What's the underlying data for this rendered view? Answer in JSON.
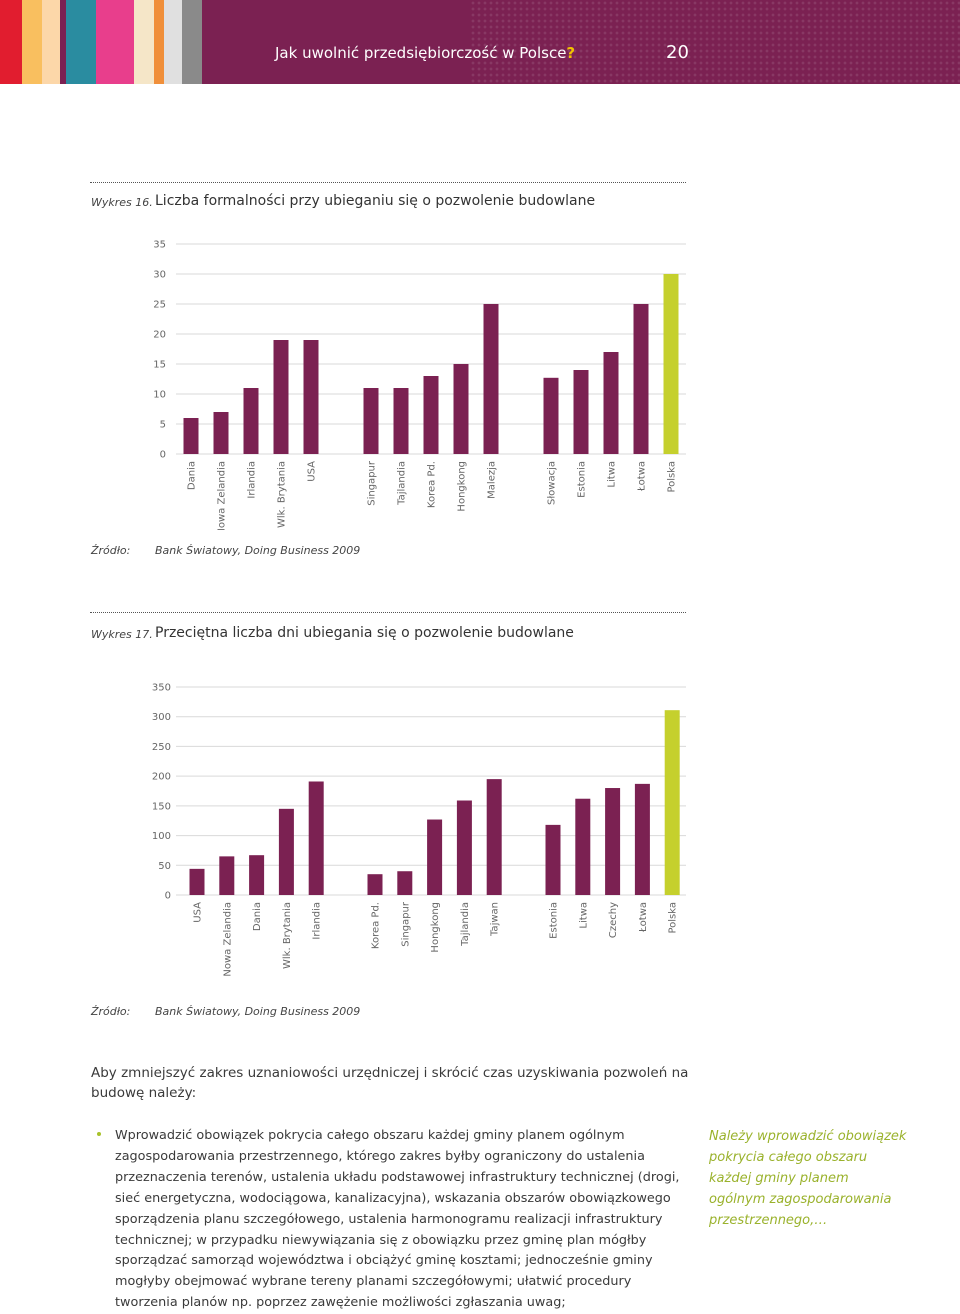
{
  "header": {
    "title": "Jak uwolnić przedsiębiorczość w Polsce",
    "title_mark": "?",
    "page_number": "20",
    "stripe_colors": [
      "#e11d2f",
      "#f9bf5f",
      "#fcd7a9",
      "#7b2152",
      "#2a8ca0",
      "#e83e8c",
      "#f5e6c8",
      "#f08f3a",
      "#e0e0e0",
      "#8a8a8a"
    ]
  },
  "figure16": {
    "label": "Wykres 16.",
    "title": "Liczba formalności przy ubieganiu się o pozwolenie budowlane",
    "source_label": "Źródło:",
    "source": "Bank Światowy, Doing Business 2009"
  },
  "figure17": {
    "label": "Wykres 17.",
    "title": "Przeciętna liczba dni ubiegania się o pozwolenie budowlane",
    "source_label": "Źródło:",
    "source": "Bank Światowy, Doing Business 2009"
  },
  "chart_data": [
    {
      "type": "bar",
      "title": "Liczba formalności przy ubieganiu się o pozwolenie budowlane",
      "categories": [
        "Dania",
        "Nowa Zelandia",
        "Irlandia",
        "Wlk. Brytania",
        "USA",
        "Singapur",
        "Tajlandia",
        "Korea Pd.",
        "Hongkong",
        "Malezja",
        "Słowacja",
        "Estonia",
        "Litwa",
        "Łotwa",
        "Polska"
      ],
      "groups": [
        5,
        5,
        5
      ],
      "values": [
        6,
        7,
        11,
        19,
        19,
        11,
        11,
        13,
        15,
        25,
        12.7,
        14,
        17,
        25,
        30
      ],
      "yticks": [
        0,
        5,
        10,
        15,
        20,
        25,
        30,
        35
      ],
      "ylim": [
        0,
        35
      ],
      "grid": true,
      "colors": {
        "default": "#7b2152",
        "highlight": "#c5d02d"
      },
      "highlight": "Polska"
    },
    {
      "type": "bar",
      "title": "Przeciętna liczba dni ubiegania się o pozwolenie budowlane",
      "categories": [
        "USA",
        "Nowa Zelandia",
        "Dania",
        "Wlk. Brytania",
        "Irlandia",
        "Korea Pd.",
        "Singapur",
        "Hongkong",
        "Tajlandia",
        "Tajwan",
        "Estonia",
        "Litwa",
        "Czechy",
        "Łotwa",
        "Polska"
      ],
      "groups": [
        5,
        5,
        5
      ],
      "values": [
        44,
        65,
        67,
        145,
        191,
        35,
        40,
        127,
        159,
        195,
        118,
        162,
        180,
        187,
        311
      ],
      "yticks": [
        0,
        50,
        100,
        150,
        200,
        250,
        300,
        350
      ],
      "ylim": [
        0,
        350
      ],
      "grid": true,
      "colors": {
        "default": "#7b2152",
        "highlight": "#c5d02d"
      },
      "highlight": "Polska"
    }
  ],
  "body": {
    "intro": "Aby zmniejszyć zakres uznaniowości urzędniczej i skrócić czas uzyskiwania pozwoleń na budowę należy:",
    "bullet": "Wprowadzić obowiązek pokrycia całego obszaru każdej gminy planem ogólnym zagospodarowania przestrzennego, którego zakres byłby ograniczony do ustalenia przeznaczenia terenów, ustalenia układu podstawowej infrastruktury technicznej (drogi, sieć energetyczna, wodociągowa, kanalizacyjna), wskazania obszarów obowiązkowego sporządzenia planu szczegółowego, ustalenia harmonogramu realizacji infrastruktury technicznej; w przypadku niewywiązania się z obowiązku przez gminę plan mógłby sporządzać samorząd województwa i obciążyć gminę kosztami; jednocześnie gminy mogłyby obejmować wybrane tereny planami szczegółowymi; ułatwić procedury tworzenia planów np. poprzez zawężenie możliwości zgłaszania uwag;",
    "aside": "Należy wprowadzić obowiązek pokrycia całego obszaru każdej gminy planem ogólnym zagospodarowania przestrzennego,…"
  }
}
